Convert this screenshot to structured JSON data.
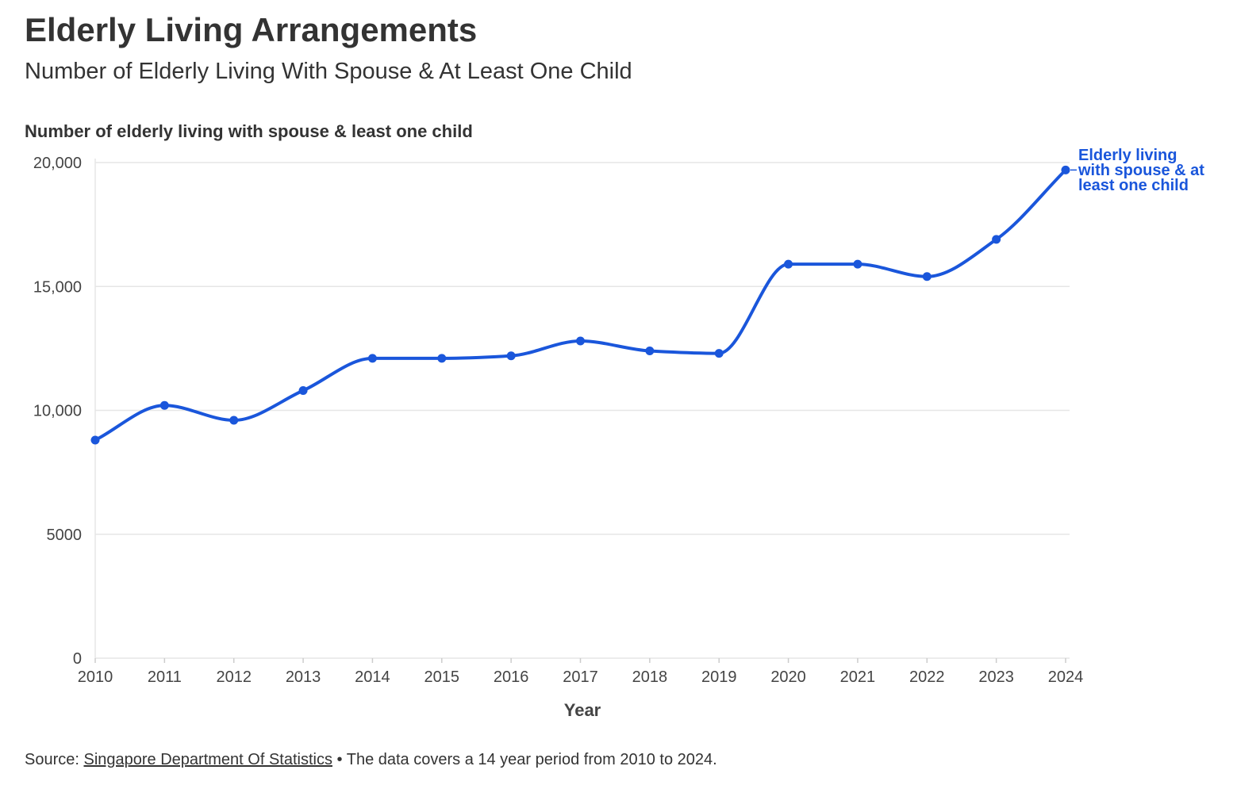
{
  "header": {
    "title": "Elderly Living Arrangements",
    "subtitle": "Number of Elderly Living With Spouse & At Least One Child"
  },
  "chart_data": {
    "type": "line",
    "title": "Number of elderly living with spouse & least one child",
    "xlabel": "Year",
    "ylabel": "",
    "x": [
      "2010",
      "2011",
      "2012",
      "2013",
      "2014",
      "2015",
      "2016",
      "2017",
      "2018",
      "2019",
      "2020",
      "2021",
      "2022",
      "2023",
      "2024"
    ],
    "series": [
      {
        "name": "Elderly living with spouse & at least one child",
        "label_lines": [
          "Elderly living",
          "with spouse & at",
          "least one child"
        ],
        "color": "#1a56db",
        "values": [
          8800,
          10200,
          9600,
          10800,
          12100,
          12100,
          12200,
          12800,
          12400,
          12300,
          15900,
          15900,
          15400,
          16900,
          19700
        ]
      }
    ],
    "ylim": [
      0,
      20000
    ],
    "y_ticks": [
      0,
      5000,
      10000,
      15000,
      20000
    ],
    "y_tick_labels": [
      "0",
      "5000",
      "10,000",
      "15,000",
      "20,000"
    ],
    "grid": true,
    "legend": "inline-end-label"
  },
  "footer": {
    "source_prefix": "Source: ",
    "source_link": "Singapore Department Of Statistics",
    "note": " • The data covers a 14 year period from 2010 to 2024."
  },
  "colors": {
    "text": "#333333",
    "grid": "#e6e6e6",
    "line": "#1a56db"
  }
}
